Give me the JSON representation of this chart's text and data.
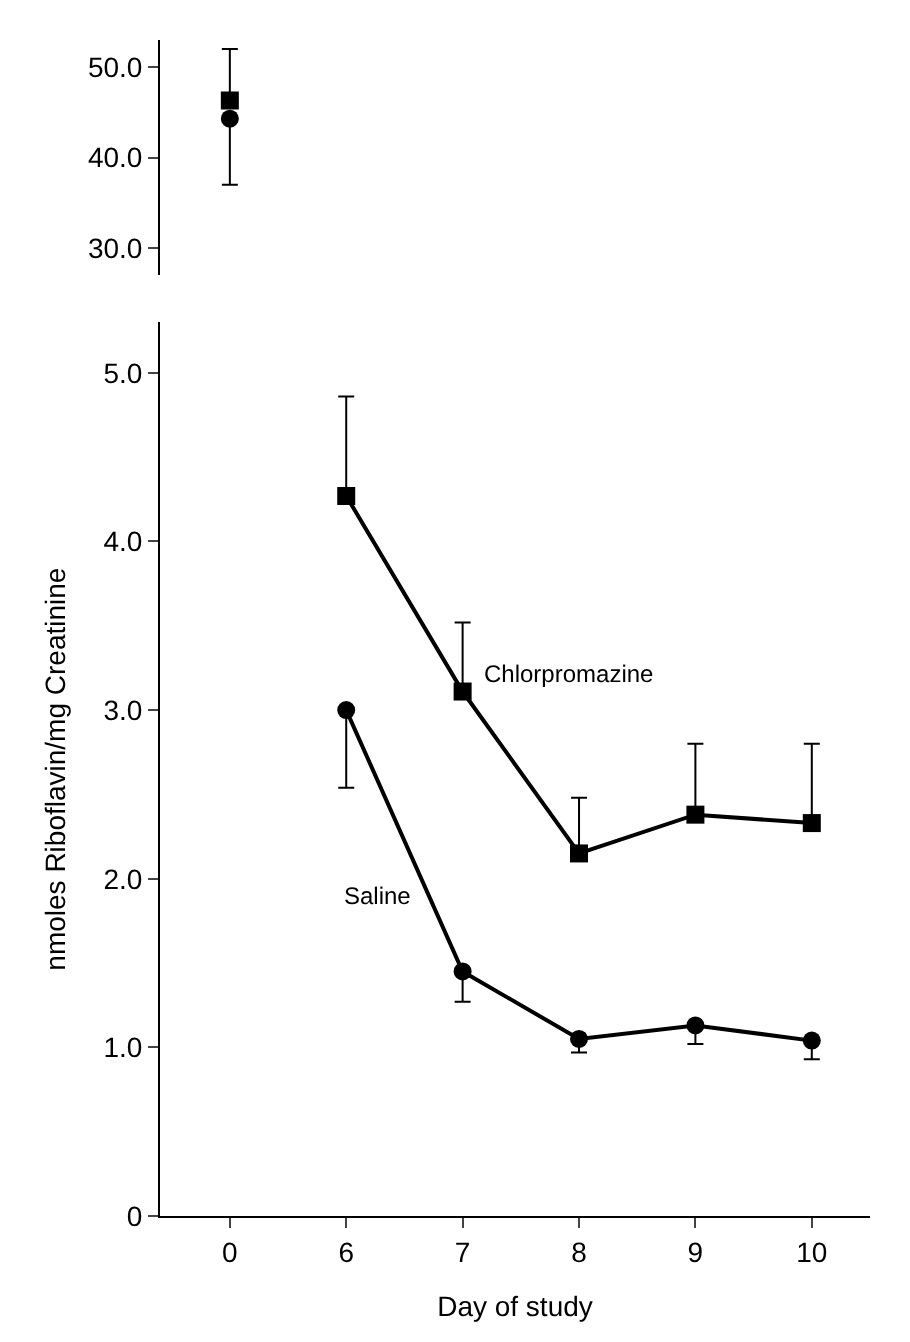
{
  "chart_data": [
    {
      "type": "line",
      "categories": [
        "0",
        "6",
        "7",
        "8",
        "9",
        "10"
      ],
      "ylim": [
        27,
        53
      ],
      "yticks": [
        {
          "value": 30,
          "label": "30.0"
        },
        {
          "value": 40,
          "label": "40.0"
        },
        {
          "value": 50,
          "label": "50.0"
        }
      ],
      "tick_labels": "y",
      "legend": false,
      "series": [
        {
          "color": "#000000",
          "marker": "square",
          "values": [
            46.3,
            null,
            null,
            null,
            null,
            null
          ],
          "errors": [
            [
              46.3,
              52.0
            ],
            null,
            null,
            null,
            null,
            null
          ]
        },
        {
          "color": "#000000",
          "marker": "circle",
          "values": [
            44.3,
            null,
            null,
            null,
            null,
            null
          ],
          "errors": [
            [
              37.0,
              44.3
            ],
            null,
            null,
            null,
            null,
            null
          ]
        }
      ]
    },
    {
      "type": "line",
      "categories": [
        "0",
        "6",
        "7",
        "8",
        "9",
        "10"
      ],
      "xlabel": "Day of study",
      "ylabel": "nmoles Riboflavin/mg Creatinine",
      "ylim": [
        0,
        5.3
      ],
      "yticks": [
        0,
        {
          "value": 1,
          "label": "1.0"
        },
        {
          "value": 2,
          "label": "2.0"
        },
        {
          "value": 3,
          "label": "3.0"
        },
        {
          "value": 4,
          "label": "4.0"
        },
        {
          "value": 5,
          "label": "5.0"
        }
      ],
      "legend": false,
      "series": [
        {
          "name": "Chlorpromazine",
          "color": "#000000",
          "marker": "square",
          "values": [
            null,
            4.27,
            3.11,
            2.15,
            2.38,
            2.33
          ],
          "errors": [
            null,
            [
              4.27,
              4.86
            ],
            [
              3.11,
              3.52
            ],
            [
              2.15,
              2.48
            ],
            [
              2.38,
              2.8
            ],
            [
              2.33,
              2.8
            ]
          ]
        },
        {
          "name": "Saline",
          "color": "#000000",
          "marker": "circle",
          "values": [
            null,
            3.0,
            1.45,
            1.05,
            1.13,
            1.04
          ],
          "errors": [
            null,
            [
              2.54,
              3.0
            ],
            [
              1.27,
              1.45
            ],
            [
              0.97,
              1.05
            ],
            [
              1.02,
              1.13
            ],
            [
              0.93,
              1.04
            ]
          ]
        }
      ]
    }
  ]
}
